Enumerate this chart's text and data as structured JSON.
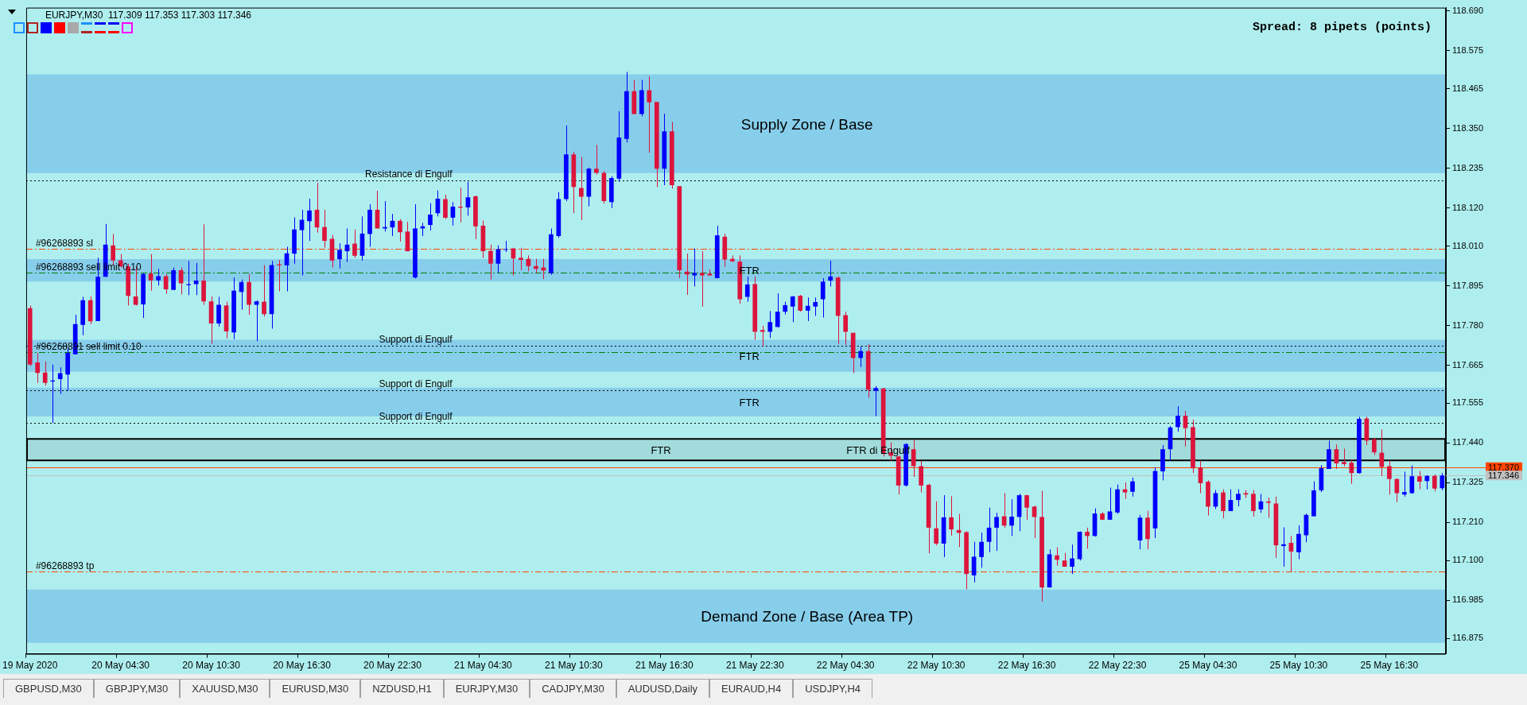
{
  "chart_data": {
    "type": "candlestick",
    "title": "EURJPY,M30  117.309 117.353 117.303 117.346",
    "categories": [
      "19 May 2020",
      null,
      null,
      null,
      null,
      null,
      null,
      null,
      null,
      null,
      null,
      null,
      "20 May 04:30",
      null,
      null,
      null,
      null,
      null,
      null,
      null,
      null,
      null,
      null,
      null,
      "20 May 10:30",
      null,
      null,
      null,
      null,
      null,
      null,
      null,
      null,
      null,
      null,
      null,
      "20 May 16:30",
      null,
      null,
      null,
      null,
      null,
      null,
      null,
      null,
      null,
      null,
      null,
      "20 May 22:30",
      null,
      null,
      null,
      null,
      null,
      null,
      null,
      null,
      null,
      null,
      null,
      "21 May 04:30",
      null,
      null,
      null,
      null,
      null,
      null,
      null,
      null,
      null,
      null,
      null,
      "21 May 10:30",
      null,
      null,
      null,
      null,
      null,
      null,
      null,
      null,
      null,
      null,
      null,
      "21 May 16:30",
      null,
      null,
      null,
      null,
      null,
      null,
      null,
      null,
      null,
      null,
      null,
      "21 May 22:30",
      null,
      null,
      null,
      null,
      null,
      null,
      null,
      null,
      null,
      null,
      null,
      "22 May 04:30",
      null,
      null,
      null,
      null,
      null,
      null,
      null,
      null,
      null,
      null,
      null,
      "22 May 10:30",
      null,
      null,
      null,
      null,
      null,
      null,
      null,
      null,
      null,
      null,
      null,
      "22 May 16:30",
      null,
      null,
      null,
      null,
      null,
      null,
      null,
      null,
      null,
      null,
      null,
      "22 May 22:30",
      null,
      null,
      null,
      null,
      null,
      null,
      null,
      null,
      null,
      null,
      null,
      "25 May 04:30",
      null,
      null,
      null,
      null,
      null,
      null,
      null,
      null,
      null,
      null,
      null,
      "25 May 10:30",
      null,
      null,
      null,
      null,
      null,
      null,
      null,
      null,
      null,
      null,
      null,
      "25 May 16:30",
      null,
      null,
      null,
      null,
      null,
      null,
      null
    ],
    "ohlc": [
      [
        117.83,
        117.838,
        117.663,
        117.667
      ],
      [
        117.673,
        117.701,
        117.614,
        117.643
      ],
      [
        117.644,
        117.676,
        117.606,
        117.614
      ],
      [
        117.618,
        117.667,
        117.498,
        117.621
      ],
      [
        117.625,
        117.659,
        117.582,
        117.642
      ],
      [
        117.638,
        117.712,
        117.591,
        117.701
      ],
      [
        117.697,
        117.811,
        117.697,
        117.784
      ],
      [
        117.782,
        117.863,
        117.752,
        117.853
      ],
      [
        117.853,
        117.864,
        117.784,
        117.792
      ],
      [
        117.793,
        117.976,
        117.793,
        117.921
      ],
      [
        117.921,
        118.074,
        117.921,
        118.014
      ],
      [
        118.012,
        118.045,
        117.955,
        117.968
      ],
      [
        117.969,
        117.987,
        117.948,
        117.951
      ],
      [
        117.951,
        117.959,
        117.838,
        117.866
      ],
      [
        117.864,
        117.951,
        117.838,
        117.84
      ],
      [
        117.841,
        117.932,
        117.802,
        117.929
      ],
      [
        117.93,
        117.987,
        117.881,
        117.911
      ],
      [
        117.911,
        117.944,
        117.896,
        117.923
      ],
      [
        117.923,
        117.929,
        117.872,
        117.885
      ],
      [
        117.883,
        117.948,
        117.883,
        117.94
      ],
      [
        117.94,
        117.948,
        117.87,
        117.902
      ],
      [
        117.897,
        117.967,
        117.868,
        117.9
      ],
      [
        117.9,
        117.961,
        117.868,
        117.91
      ],
      [
        117.91,
        118.073,
        117.84,
        117.85
      ],
      [
        117.85,
        117.864,
        117.727,
        117.786
      ],
      [
        117.786,
        117.863,
        117.777,
        117.84
      ],
      [
        117.838,
        117.849,
        117.743,
        117.763
      ],
      [
        117.76,
        117.919,
        117.74,
        117.881
      ],
      [
        117.877,
        117.913,
        117.826,
        117.906
      ],
      [
        117.906,
        117.929,
        117.811,
        117.84
      ],
      [
        117.84,
        117.853,
        117.735,
        117.85
      ],
      [
        117.849,
        117.955,
        117.806,
        117.813
      ],
      [
        117.813,
        117.967,
        117.771,
        117.955
      ],
      [
        117.957,
        117.97,
        117.879,
        117.954
      ],
      [
        117.954,
        118.008,
        117.879,
        117.989
      ],
      [
        117.988,
        118.093,
        117.959,
        118.058
      ],
      [
        118.056,
        118.115,
        117.925,
        118.086
      ],
      [
        118.082,
        118.147,
        118.025,
        118.113
      ],
      [
        118.115,
        118.193,
        118.049,
        118.064
      ],
      [
        118.065,
        118.115,
        118.005,
        118.025
      ],
      [
        118.031,
        118.042,
        117.948,
        117.968
      ],
      [
        117.972,
        118.018,
        117.945,
        117.999
      ],
      [
        117.995,
        118.061,
        117.964,
        118.014
      ],
      [
        118.017,
        118.058,
        117.976,
        117.982
      ],
      [
        117.982,
        118.096,
        117.968,
        118.046
      ],
      [
        118.045,
        118.131,
        118.008,
        118.115
      ],
      [
        118.115,
        118.17,
        118.061,
        118.061
      ],
      [
        118.061,
        118.14,
        118.052,
        118.065
      ],
      [
        118.064,
        118.103,
        118.039,
        118.083
      ],
      [
        118.083,
        118.088,
        118.023,
        118.05
      ],
      [
        118.052,
        118.08,
        117.995,
        117.995
      ],
      [
        117.919,
        118.131,
        117.916,
        118.061
      ],
      [
        118.061,
        118.077,
        118.039,
        118.067
      ],
      [
        118.071,
        118.134,
        118.055,
        118.101
      ],
      [
        118.105,
        118.171,
        118.096,
        118.147
      ],
      [
        118.146,
        118.159,
        118.088,
        118.092
      ],
      [
        118.092,
        118.137,
        118.069,
        118.124
      ],
      [
        118.124,
        118.179,
        118.079,
        118.121
      ],
      [
        118.122,
        118.196,
        118.098,
        118.151
      ],
      [
        118.154,
        118.156,
        118.03,
        118.067
      ],
      [
        118.069,
        118.084,
        117.976,
        117.995
      ],
      [
        117.996,
        118.014,
        117.913,
        117.959
      ],
      [
        117.959,
        118.012,
        117.932,
        118.001
      ],
      [
        117.999,
        118.025,
        117.993,
        118.001
      ],
      [
        118.003,
        118.005,
        117.925,
        117.974
      ],
      [
        117.976,
        118.005,
        117.94,
        117.97
      ],
      [
        117.973,
        117.983,
        117.937,
        117.952
      ],
      [
        117.952,
        117.973,
        117.932,
        117.944
      ],
      [
        117.948,
        117.973,
        117.914,
        117.939
      ],
      [
        117.932,
        118.061,
        117.927,
        118.044
      ],
      [
        118.039,
        118.166,
        118.034,
        118.146
      ],
      [
        118.146,
        118.359,
        118.14,
        118.275
      ],
      [
        118.275,
        118.283,
        118.105,
        118.181
      ],
      [
        118.178,
        118.268,
        118.085,
        118.153
      ],
      [
        118.153,
        118.237,
        118.125,
        118.234
      ],
      [
        118.234,
        118.303,
        118.217,
        118.222
      ],
      [
        118.222,
        118.227,
        118.133,
        118.14
      ],
      [
        118.137,
        118.212,
        118.12,
        118.207
      ],
      [
        118.205,
        118.4,
        118.196,
        118.324
      ],
      [
        118.32,
        118.514,
        118.31,
        118.458
      ],
      [
        118.458,
        118.491,
        118.392,
        118.392
      ],
      [
        118.392,
        118.491,
        118.385,
        118.461
      ],
      [
        118.461,
        118.501,
        118.28,
        118.426
      ],
      [
        118.427,
        118.427,
        118.181,
        118.234
      ],
      [
        118.234,
        118.393,
        118.186,
        118.342
      ],
      [
        118.342,
        118.369,
        118.176,
        118.186
      ],
      [
        118.183,
        118.183,
        117.917,
        117.94
      ],
      [
        117.936,
        117.988,
        117.869,
        117.928
      ],
      [
        117.925,
        118.003,
        117.893,
        117.932
      ],
      [
        117.932,
        117.995,
        117.835,
        117.925
      ],
      [
        117.93,
        117.942,
        117.924,
        117.925
      ],
      [
        117.917,
        118.069,
        117.917,
        118.041
      ],
      [
        118.037,
        118.046,
        117.95,
        117.971
      ],
      [
        117.973,
        117.983,
        117.963,
        117.966
      ],
      [
        117.965,
        117.983,
        117.843,
        117.856
      ],
      [
        117.863,
        117.922,
        117.849,
        117.899
      ],
      [
        117.9,
        117.922,
        117.739,
        117.762
      ],
      [
        117.767,
        117.779,
        117.719,
        117.762
      ],
      [
        117.762,
        117.822,
        117.744,
        117.79
      ],
      [
        117.776,
        117.873,
        117.774,
        117.82
      ],
      [
        117.82,
        117.849,
        117.812,
        117.839
      ],
      [
        117.835,
        117.866,
        117.79,
        117.864
      ],
      [
        117.866,
        117.869,
        117.82,
        117.823
      ],
      [
        117.823,
        117.861,
        117.793,
        117.837
      ],
      [
        117.835,
        117.861,
        117.808,
        117.848
      ],
      [
        117.856,
        117.917,
        117.803,
        117.907
      ],
      [
        117.91,
        117.968,
        117.893,
        117.922
      ],
      [
        117.919,
        117.922,
        117.727,
        117.808
      ],
      [
        117.81,
        117.82,
        117.724,
        117.762
      ],
      [
        117.759,
        117.759,
        117.642,
        117.686
      ],
      [
        117.686,
        117.719,
        117.66,
        117.706
      ],
      [
        117.706,
        117.726,
        117.571,
        117.594
      ],
      [
        117.591,
        117.605,
        117.518,
        117.599
      ],
      [
        117.598,
        117.599,
        117.401,
        117.41
      ],
      [
        117.413,
        117.442,
        117.388,
        117.403
      ],
      [
        117.401,
        117.403,
        117.291,
        117.317
      ],
      [
        117.317,
        117.439,
        117.314,
        117.437
      ],
      [
        117.422,
        117.449,
        117.342,
        117.373
      ],
      [
        117.373,
        117.388,
        117.297,
        117.317
      ],
      [
        117.319,
        117.322,
        117.121,
        117.195
      ],
      [
        117.193,
        117.271,
        117.144,
        117.149
      ],
      [
        117.149,
        117.289,
        117.11,
        117.225
      ],
      [
        117.225,
        117.286,
        117.172,
        117.19
      ],
      [
        117.188,
        117.235,
        117.139,
        117.18
      ],
      [
        117.182,
        117.185,
        117.017,
        117.061
      ],
      [
        117.057,
        117.154,
        117.037,
        117.111
      ],
      [
        117.11,
        117.181,
        117.079,
        117.154
      ],
      [
        117.154,
        117.253,
        117.124,
        117.195
      ],
      [
        117.195,
        117.238,
        117.128,
        117.226
      ],
      [
        117.228,
        117.295,
        117.195,
        117.201
      ],
      [
        117.201,
        117.277,
        117.171,
        117.227
      ],
      [
        117.226,
        117.293,
        117.185,
        117.289
      ],
      [
        117.289,
        117.29,
        117.218,
        117.253
      ],
      [
        117.256,
        117.259,
        117.165,
        117.226
      ],
      [
        117.226,
        117.302,
        116.981,
        117.022
      ],
      [
        117.022,
        117.132,
        117.022,
        117.118
      ],
      [
        117.115,
        117.138,
        117.085,
        117.102
      ],
      [
        117.1,
        117.122,
        117.082,
        117.082
      ],
      [
        117.082,
        117.146,
        117.061,
        117.106
      ],
      [
        117.104,
        117.184,
        117.1,
        117.183
      ],
      [
        117.183,
        117.195,
        117.134,
        117.171
      ],
      [
        117.171,
        117.251,
        117.169,
        117.236
      ],
      [
        117.236,
        117.24,
        117.217,
        117.218
      ],
      [
        117.218,
        117.311,
        117.218,
        117.242
      ],
      [
        117.239,
        117.32,
        117.235,
        117.306
      ],
      [
        117.306,
        117.326,
        117.278,
        117.297
      ],
      [
        117.299,
        117.34,
        117.285,
        117.329
      ],
      [
        117.158,
        117.232,
        117.132,
        117.224
      ],
      [
        117.224,
        117.244,
        117.132,
        117.162
      ],
      [
        117.193,
        117.369,
        117.165,
        117.359
      ],
      [
        117.358,
        117.434,
        117.332,
        117.422
      ],
      [
        117.422,
        117.489,
        117.389,
        117.485
      ],
      [
        117.486,
        117.546,
        117.473,
        117.519
      ],
      [
        117.519,
        117.533,
        117.43,
        117.483
      ],
      [
        117.486,
        117.508,
        117.353,
        117.367
      ],
      [
        117.369,
        117.389,
        117.295,
        117.324
      ],
      [
        117.328,
        117.332,
        117.23,
        117.256
      ],
      [
        117.256,
        117.304,
        117.249,
        117.295
      ],
      [
        117.297,
        117.306,
        117.222,
        117.243
      ],
      [
        117.243,
        117.306,
        117.243,
        117.275
      ],
      [
        117.275,
        117.306,
        117.257,
        117.293
      ],
      [
        117.295,
        117.304,
        117.281,
        117.291
      ],
      [
        117.293,
        117.304,
        117.227,
        117.243
      ],
      [
        117.248,
        117.293,
        117.238,
        117.271
      ],
      [
        117.271,
        117.282,
        117.224,
        117.267
      ],
      [
        117.265,
        117.285,
        117.108,
        117.144
      ],
      [
        117.142,
        117.196,
        117.082,
        117.147
      ],
      [
        117.151,
        117.171,
        117.069,
        117.126
      ],
      [
        117.124,
        117.202,
        117.104,
        117.177
      ],
      [
        117.173,
        117.236,
        117.153,
        117.232
      ],
      [
        117.228,
        117.329,
        117.228,
        117.303
      ],
      [
        117.303,
        117.376,
        117.298,
        117.367
      ],
      [
        117.365,
        117.447,
        117.365,
        117.422
      ],
      [
        117.422,
        117.436,
        117.365,
        117.381
      ],
      [
        117.385,
        117.424,
        117.373,
        117.379
      ],
      [
        117.383,
        117.392,
        117.322,
        117.353
      ],
      [
        117.353,
        117.516,
        117.351,
        117.51
      ],
      [
        117.511,
        117.516,
        117.434,
        117.447
      ],
      [
        117.451,
        117.455,
        117.405,
        117.413
      ],
      [
        117.412,
        117.479,
        117.345,
        117.371
      ],
      [
        117.373,
        117.389,
        117.291,
        117.336
      ],
      [
        117.336,
        117.337,
        117.269,
        117.295
      ],
      [
        117.291,
        117.357,
        117.285,
        117.298
      ],
      [
        117.295,
        117.375,
        117.293,
        117.344
      ],
      [
        117.344,
        117.359,
        117.306,
        117.328
      ],
      [
        117.33,
        117.347,
        117.306,
        117.345
      ],
      [
        117.345,
        117.349,
        117.3,
        117.308
      ],
      [
        117.309,
        117.353,
        117.303,
        117.346
      ]
    ],
    "colors": [
      "#dc143c",
      "#dc143c",
      "#dc143c",
      "#0000ff",
      "#0000ff",
      "#0000ff",
      "#0000ff",
      "#0000ff",
      "#dc143c",
      "#0000ff",
      "#0000ff",
      "#dc143c",
      "#dc143c",
      "#dc143c",
      "#dc143c",
      "#0000ff",
      "#dc143c",
      "#0000ff",
      "#dc143c",
      "#0000ff",
      "#dc143c",
      "#0000ff",
      "#0000ff",
      "#dc143c",
      "#dc143c",
      "#0000ff",
      "#dc143c",
      "#0000ff",
      "#0000ff",
      "#dc143c",
      "#0000ff",
      "#dc143c",
      "#0000ff",
      "#dc143c",
      "#0000ff",
      "#0000ff",
      "#0000ff",
      "#0000ff",
      "#dc143c",
      "#dc143c",
      "#dc143c",
      "#0000ff",
      "#0000ff",
      "#dc143c",
      "#0000ff",
      "#0000ff",
      "#dc143c",
      "#0000ff",
      "#0000ff",
      "#dc143c",
      "#dc143c",
      "#0000ff",
      "#0000ff",
      "#0000ff",
      "#0000ff",
      "#dc143c",
      "#0000ff",
      "#dc143c",
      "#0000ff",
      "#dc143c",
      "#dc143c",
      "#dc143c",
      "#0000ff",
      "#0000ff",
      "#dc143c",
      "#dc143c",
      "#dc143c",
      "#dc143c",
      "#dc143c",
      "#0000ff",
      "#0000ff",
      "#0000ff",
      "#dc143c",
      "#dc143c",
      "#0000ff",
      "#dc143c",
      "#dc143c",
      "#0000ff",
      "#0000ff",
      "#0000ff",
      "#dc143c",
      "#0000ff",
      "#dc143c",
      "#dc143c",
      "#0000ff",
      "#dc143c",
      "#dc143c",
      "#dc143c",
      "#0000ff",
      "#dc143c",
      "#dc143c",
      "#0000ff",
      "#dc143c",
      "#dc143c",
      "#dc143c",
      "#0000ff",
      "#dc143c",
      "#dc143c",
      "#0000ff",
      "#0000ff",
      "#0000ff",
      "#0000ff",
      "#dc143c",
      "#0000ff",
      "#0000ff",
      "#0000ff",
      "#0000ff",
      "#dc143c",
      "#dc143c",
      "#dc143c",
      "#0000ff",
      "#dc143c",
      "#0000ff",
      "#dc143c",
      "#dc143c",
      "#dc143c",
      "#0000ff",
      "#dc143c",
      "#dc143c",
      "#dc143c",
      "#dc143c",
      "#0000ff",
      "#dc143c",
      "#dc143c",
      "#dc143c",
      "#0000ff",
      "#0000ff",
      "#0000ff",
      "#0000ff",
      "#dc143c",
      "#0000ff",
      "#0000ff",
      "#dc143c",
      "#dc143c",
      "#dc143c",
      "#0000ff",
      "#dc143c",
      "#dc143c",
      "#0000ff",
      "#0000ff",
      "#dc143c",
      "#0000ff",
      "#dc143c",
      "#0000ff",
      "#0000ff",
      "#dc143c",
      "#0000ff",
      "#0000ff",
      "#dc143c",
      "#0000ff",
      "#0000ff",
      "#0000ff",
      "#0000ff",
      "#dc143c",
      "#dc143c",
      "#dc143c",
      "#dc143c",
      "#0000ff",
      "#dc143c",
      "#0000ff",
      "#0000ff",
      "#dc143c",
      "#dc143c",
      "#0000ff",
      "#dc143c",
      "#dc143c",
      "#0000ff",
      "#dc143c",
      "#0000ff",
      "#0000ff",
      "#0000ff",
      "#0000ff",
      "#0000ff",
      "#dc143c",
      "#dc143c",
      "#dc143c",
      "#0000ff",
      "#dc143c",
      "#dc143c",
      "#dc143c",
      "#dc143c",
      "#dc143c",
      "#0000ff",
      "#0000ff",
      "#dc143c",
      "#0000ff",
      "#dc143c",
      "#0000ff"
    ],
    "ylim": [
      116.83,
      118.7
    ],
    "yticks": [
      {
        "value": 118.69,
        "label": "118.690"
      },
      118.575,
      118.465,
      {
        "value": 118.35,
        "label": "118.350"
      },
      118.235,
      {
        "value": 118.12,
        "label": "118.120"
      },
      {
        "value": 118.01,
        "label": "118.010"
      },
      117.895,
      {
        "value": 117.78,
        "label": "117.780"
      },
      117.665,
      117.555,
      {
        "value": 117.44,
        "label": "117.440"
      },
      117.325,
      {
        "value": 117.21,
        "label": "117.210"
      },
      {
        "value": 117.1,
        "label": "117.100"
      },
      116.985,
      116.875
    ],
    "bands": [
      {
        "axis": "y",
        "from": 118.221,
        "to": 118.507,
        "label": "Supply Zone / Base",
        "color": "#87ceeb"
      },
      {
        "axis": "y",
        "from": 117.907,
        "to": 117.972,
        "label": "FTR",
        "color": "#87ceeb"
      },
      {
        "axis": "y",
        "from": 117.646,
        "to": 117.739,
        "label": "FTR",
        "color": "#87ceeb"
      },
      {
        "axis": "y",
        "from": 117.517,
        "to": 117.6,
        "label": "FTR",
        "color": "#87ceeb"
      },
      {
        "axis": "y",
        "from": 117.39,
        "to": 117.452,
        "label": "FTR di Engulf",
        "color": "#000000"
      },
      {
        "axis": "y",
        "from": 116.862,
        "to": 117.016,
        "label": "Demand Zone / Base (Area TP)",
        "color": "#87ceeb"
      }
    ],
    "ref_lines": [
      {
        "axis": "y",
        "value": 118.201,
        "label": "Resistance di Engulf",
        "color": "#000000",
        "line_style": "dotted"
      },
      {
        "axis": "y",
        "value": 118.001,
        "label": "#96268893 sl",
        "color": "#ff4500",
        "line_style": "dashed"
      },
      {
        "axis": "y",
        "value": 117.932,
        "label": "#96268893 sell limit 0.10",
        "color": "#008000",
        "line_style": "dashed"
      },
      {
        "axis": "y",
        "value": 117.721,
        "label": "Support di Engulf",
        "color": "#000000",
        "line_style": "dotted"
      },
      {
        "axis": "y",
        "value": 117.702,
        "label": "#96268891 sell limit 0.10",
        "color": "#008000",
        "line_style": "dashed"
      },
      {
        "axis": "y",
        "value": 117.593,
        "label": "Support di Engulf",
        "color": "#000000",
        "line_style": "dotted"
      },
      {
        "axis": "y",
        "value": 117.498,
        "label": "Support di Engulf",
        "color": "#000000",
        "line_style": "dotted"
      },
      {
        "axis": "y",
        "value": 117.069,
        "label": "#96268893 tp",
        "color": "#ff4500",
        "line_style": "dashed"
      },
      {
        "axis": "y",
        "value": 117.37,
        "label": "117.370",
        "color": "#ff4500",
        "line_style": "solid"
      },
      {
        "axis": "y",
        "value": 117.346,
        "label": "117.346",
        "color": "#c0c0c0",
        "line_style": "solid"
      }
    ],
    "annotations": [
      "Spread: 8 pipets (points)",
      "FTR",
      "GBPUSD,M30",
      "GBPJPY,M30",
      "XAUUSD,M30",
      "EURUSD,M30",
      "NZDUSD,H1",
      "EURJPY,M30",
      "CADJPY,M30",
      "AUDUSD,Daily",
      "EURAUD,H4",
      "USDJPY,H4"
    ]
  }
}
